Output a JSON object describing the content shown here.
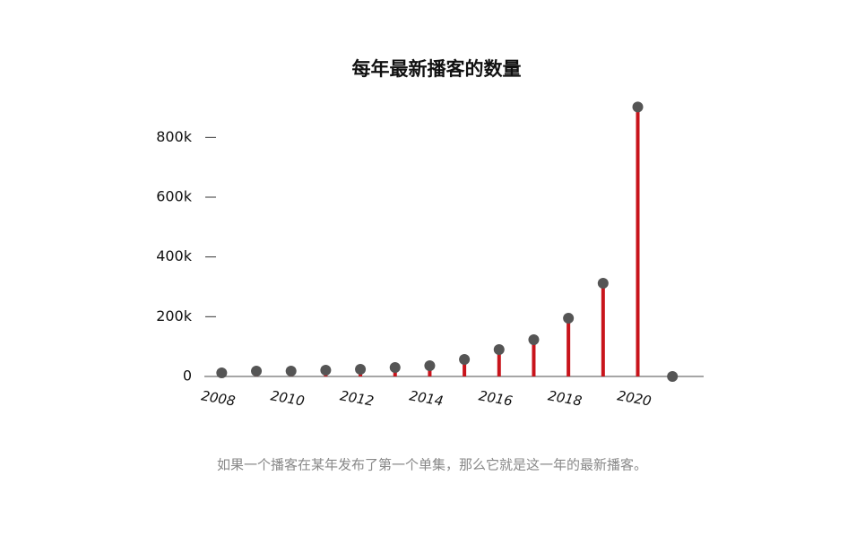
{
  "chart_data": {
    "type": "lollipop",
    "title": "每年最新播客的数量",
    "x": [
      2008,
      2009,
      2010,
      2011,
      2012,
      2013,
      2014,
      2015,
      2016,
      2017,
      2018,
      2019,
      2020,
      2021
    ],
    "values": [
      12000,
      18000,
      18000,
      21000,
      24000,
      30000,
      36000,
      57000,
      90000,
      123000,
      195000,
      312000,
      902000,
      0
    ],
    "color": "#c8141b",
    "dot_color": "#555555",
    "xlim": [
      2007.5,
      2021.9
    ],
    "xticks": [
      2008,
      2010,
      2012,
      2014,
      2016,
      2018,
      2020
    ],
    "ylim": [
      0,
      900000
    ],
    "yticks": [
      {
        "value": 0,
        "label": "0"
      },
      {
        "value": 200000,
        "label": "200k"
      },
      {
        "value": 400000,
        "label": "400k"
      },
      {
        "value": 600000,
        "label": "600k"
      },
      {
        "value": 800000,
        "label": "800k"
      }
    ],
    "caption": "如果一个播客在某年发布了第一个单集，那么它就是这一年的最新播客。"
  }
}
